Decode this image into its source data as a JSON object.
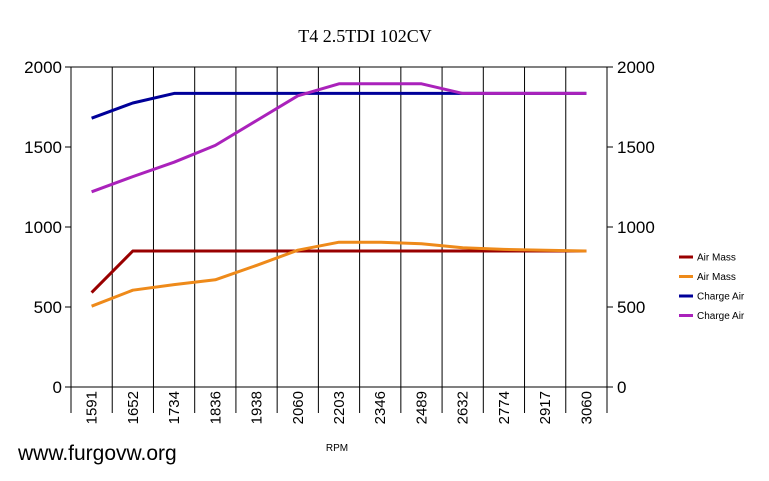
{
  "chart_data": {
    "type": "line",
    "title": "T4  2.5TDI  102CV",
    "xlabel": "RPM",
    "ylabel": "",
    "ylim": [
      0,
      2000
    ],
    "y_ticks": [
      "0",
      "500",
      "1000",
      "1500",
      "2000"
    ],
    "grid": "vertical",
    "legend_position": "right",
    "categories": [
      "1591",
      "1652",
      "1734",
      "1836",
      "1938",
      "2060",
      "2203",
      "2346",
      "2489",
      "2632",
      "2774",
      "2917",
      "3060"
    ],
    "series": [
      {
        "name": "Air Mass",
        "color": "#990000",
        "values": [
          590,
          850,
          850,
          850,
          850,
          850,
          850,
          850,
          850,
          850,
          850,
          850,
          850
        ]
      },
      {
        "name": "Air Mass",
        "color": "#ee8a1a",
        "values": [
          505,
          605,
          640,
          670,
          760,
          855,
          905,
          905,
          895,
          870,
          860,
          855,
          850
        ]
      },
      {
        "name": "Charge Air",
        "color": "#000099",
        "values": [
          1680,
          1775,
          1835,
          1835,
          1835,
          1835,
          1835,
          1835,
          1835,
          1835,
          1835,
          1835,
          1835
        ]
      },
      {
        "name": "Charge Air",
        "color": "#aa22bb",
        "values": [
          1220,
          1315,
          1405,
          1510,
          1665,
          1820,
          1895,
          1895,
          1895,
          1835,
          1835,
          1835,
          1835
        ]
      }
    ]
  },
  "watermark": "www.furgovw.org"
}
